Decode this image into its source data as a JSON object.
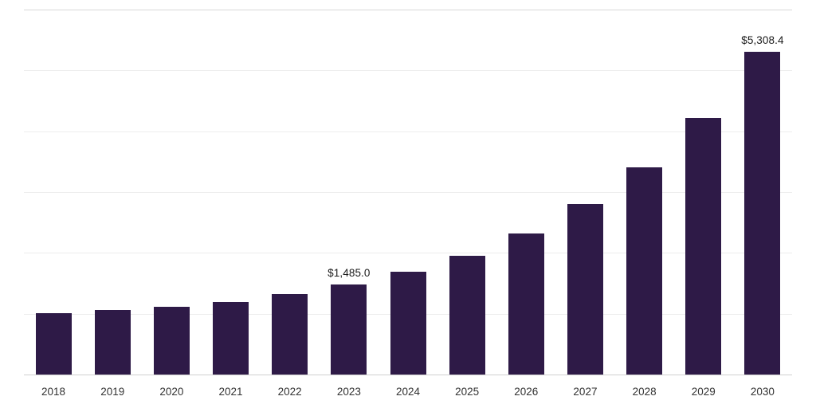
{
  "chart_data": {
    "type": "bar",
    "title": "",
    "xlabel": "",
    "ylabel": "",
    "categories": [
      "2018",
      "2019",
      "2020",
      "2021",
      "2022",
      "2023",
      "2024",
      "2025",
      "2026",
      "2027",
      "2028",
      "2029",
      "2030"
    ],
    "values": [
      1010,
      1062,
      1115,
      1190,
      1317,
      1485.0,
      1688,
      1957,
      2315,
      2800,
      3400,
      4220,
      5308.4
    ],
    "data_labels": [
      {
        "index": 5,
        "text": "$1,485.0"
      },
      {
        "index": 12,
        "text": "$5,308.4"
      }
    ],
    "ylim": [
      0,
      6000
    ],
    "grid": true,
    "grid_interval": 1000,
    "legend": "none",
    "bar_color": "#2e1a47",
    "grid_color": "#ededed",
    "axis_text_color": "#333333",
    "label_text_color": "#1a1a1a"
  }
}
